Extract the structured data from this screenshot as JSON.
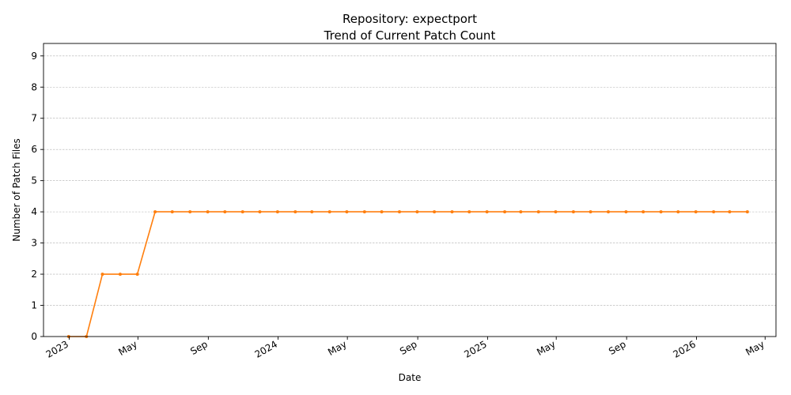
{
  "chart_data": {
    "type": "line",
    "title": "Repository: expectport",
    "subtitle": "Trend of Current Patch Count",
    "xlabel": "Date",
    "ylabel": "Number of Patch Files",
    "xlim": [
      "2022-11-17",
      "2026-05-20"
    ],
    "ylim": [
      0,
      9.4
    ],
    "y_ticks": [
      0,
      1,
      2,
      3,
      4,
      5,
      6,
      7,
      8,
      9
    ],
    "x_ticks": [
      {
        "date": "2023-01-01",
        "label": "2023"
      },
      {
        "date": "2023-05-01",
        "label": "May"
      },
      {
        "date": "2023-09-01",
        "label": "Sep"
      },
      {
        "date": "2024-01-01",
        "label": "2024"
      },
      {
        "date": "2024-05-01",
        "label": "May"
      },
      {
        "date": "2024-09-01",
        "label": "Sep"
      },
      {
        "date": "2025-01-01",
        "label": "2025"
      },
      {
        "date": "2025-05-01",
        "label": "May"
      },
      {
        "date": "2025-09-01",
        "label": "Sep"
      },
      {
        "date": "2026-01-01",
        "label": "2026"
      },
      {
        "date": "2026-05-01",
        "label": "May"
      }
    ],
    "grid": {
      "y": true,
      "x": false
    },
    "line_color": "#ff7f0e",
    "series": [
      {
        "x": [
          "2022-12-31",
          "2023-01-31",
          "2023-02-28",
          "2023-03-31",
          "2023-04-30",
          "2023-05-31",
          "2023-06-30",
          "2023-07-31",
          "2023-08-31",
          "2023-09-30",
          "2023-10-31",
          "2023-11-30",
          "2023-12-31",
          "2024-01-31",
          "2024-02-29",
          "2024-03-31",
          "2024-04-30",
          "2024-05-31",
          "2024-06-30",
          "2024-07-31",
          "2024-08-31",
          "2024-09-30",
          "2024-10-31",
          "2024-11-30",
          "2024-12-31",
          "2025-01-31",
          "2025-02-28",
          "2025-03-31",
          "2025-04-30",
          "2025-05-31",
          "2025-06-30",
          "2025-07-31",
          "2025-08-31",
          "2025-09-30",
          "2025-10-31",
          "2025-11-30",
          "2025-12-31",
          "2026-01-31",
          "2026-02-28",
          "2026-03-31"
        ],
        "values": [
          0,
          0,
          2,
          2,
          2,
          4,
          4,
          4,
          4,
          4,
          4,
          4,
          4,
          4,
          4,
          4,
          4,
          4,
          4,
          4,
          4,
          4,
          4,
          4,
          4,
          4,
          4,
          4,
          4,
          4,
          4,
          4,
          4,
          4,
          4,
          4,
          4,
          4,
          4,
          4
        ]
      }
    ]
  }
}
